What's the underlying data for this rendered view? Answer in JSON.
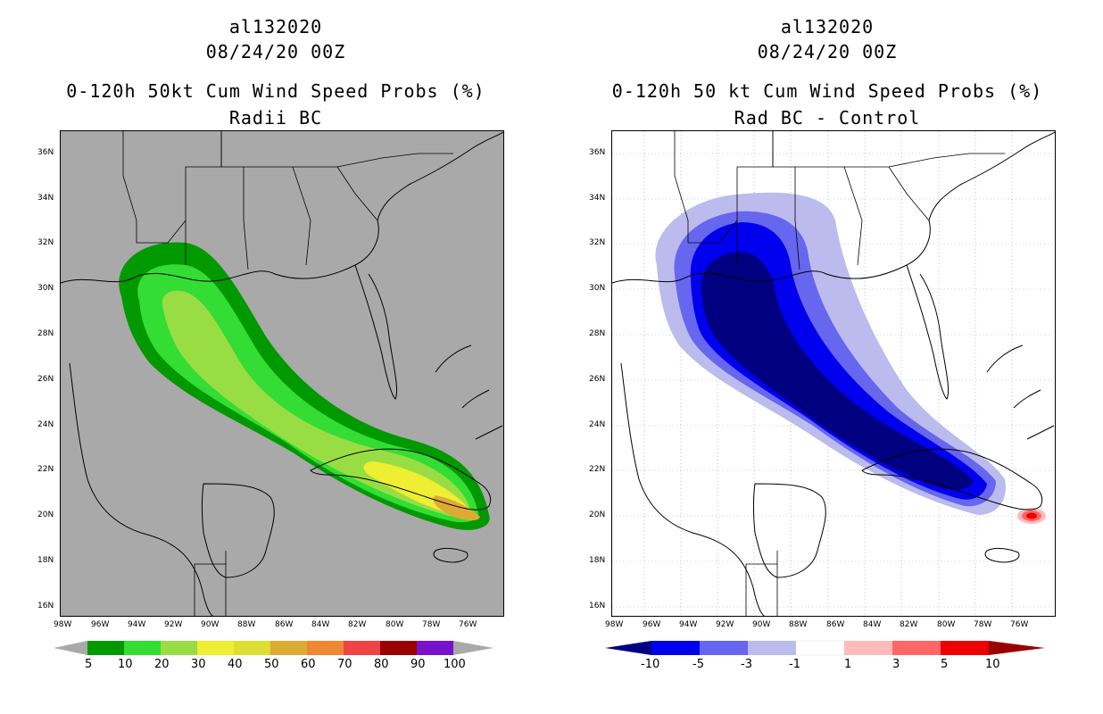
{
  "left": {
    "title": "al132020",
    "datetime": "08/24/20 00Z",
    "product": "0-120h 50kt Cum Wind Speed Probs (%)",
    "subtitle": "Radii BC",
    "colorbar_labels": [
      "5",
      "10",
      "20",
      "30",
      "40",
      "50",
      "60",
      "70",
      "80",
      "90",
      "100"
    ],
    "colorbar_colors": [
      "#009900",
      "#33dd33",
      "#99dd44",
      "#eeee33",
      "#dddd33",
      "#ddaa33",
      "#ee8833",
      "#ee4444",
      "#990000",
      "#7711cc"
    ],
    "land_color": "#a9a9a9"
  },
  "right": {
    "title": "al132020",
    "datetime": "08/24/20 00Z",
    "product": "0-120h 50 kt Cum Wind Speed Probs (%)",
    "subtitle": "Rad BC - Control",
    "colorbar_labels": [
      "-10",
      "-5",
      "-3",
      "-1",
      "1",
      "3",
      "5",
      "10"
    ],
    "colorbar_colors": [
      "#000080",
      "#0000ee",
      "#6666ee",
      "#bbbbee",
      "#ffffff",
      "#ffbbbb",
      "#ff6666",
      "#ee0000",
      "#990000"
    ]
  },
  "axes": {
    "lat_labels": [
      "36N",
      "34N",
      "32N",
      "30N",
      "28N",
      "26N",
      "24N",
      "22N",
      "20N",
      "18N",
      "16N"
    ],
    "lon_labels": [
      "98W",
      "96W",
      "94W",
      "92W",
      "90W",
      "88W",
      "86W",
      "84W",
      "82W",
      "80W",
      "78W",
      "76W"
    ]
  }
}
